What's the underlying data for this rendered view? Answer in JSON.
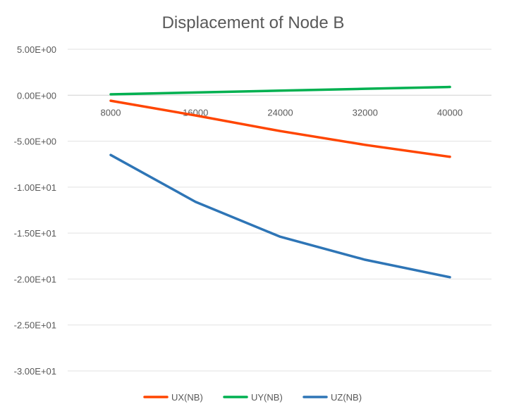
{
  "chart_data": {
    "type": "line",
    "title": "Displacement of Node B",
    "xlabel": "",
    "ylabel": "",
    "categories": [
      "8000",
      "16000",
      "24000",
      "32000",
      "40000"
    ],
    "ylim": [
      -30,
      5
    ],
    "yticks": [
      5,
      0,
      -5,
      -10,
      -15,
      -20,
      -25,
      -30
    ],
    "ytick_labels": [
      "5.00E+00",
      "0.00E+00",
      "-5.00E+00",
      "-1.00E+01",
      "-1.50E+01",
      "-2.00E+01",
      "-2.50E+01",
      "-3.00E+01"
    ],
    "grid": true,
    "legend_position": "bottom",
    "series": [
      {
        "name": "UX(NB)",
        "color": "#FF4500",
        "values": [
          -0.6,
          -2.2,
          -3.9,
          -5.4,
          -6.7
        ]
      },
      {
        "name": "UY(NB)",
        "color": "#00B050",
        "values": [
          0.1,
          0.3,
          0.5,
          0.7,
          0.9
        ]
      },
      {
        "name": "UZ(NB)",
        "color": "#2E75B6",
        "values": [
          -6.5,
          -11.6,
          -15.4,
          -17.9,
          -19.8
        ]
      }
    ]
  }
}
